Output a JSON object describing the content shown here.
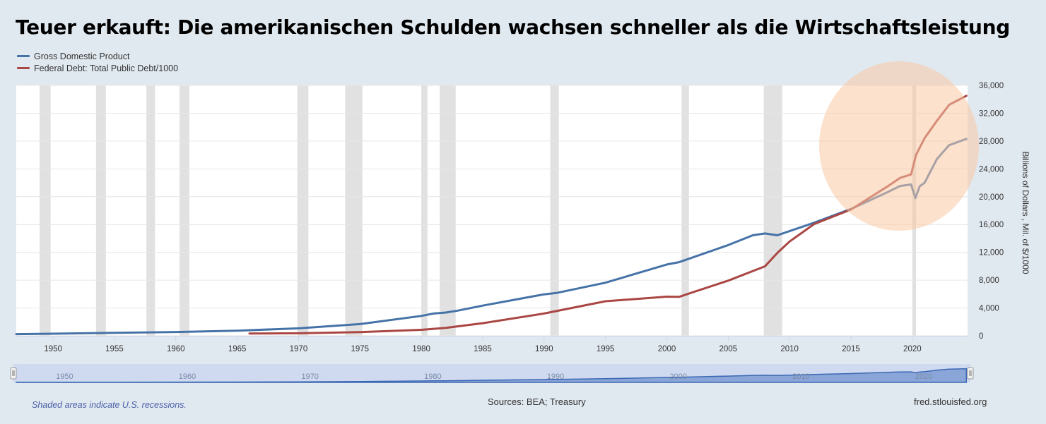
{
  "title": "Teuer erkauft: Die amerikanischen Schulden wachsen schneller als die Wirtschaftsleistung",
  "footer": {
    "recession_note": "Shaded areas indicate U.S. recessions.",
    "sources": "Sources: BEA; Treasury",
    "site": "fred.stlouisfed.org"
  },
  "colors": {
    "gdp": "#4572a7",
    "debt": "#aa4643",
    "recession": "#e1e1e1",
    "highlight": "#f9c9a4"
  },
  "chart_data": {
    "type": "line",
    "xlim": [
      1947,
      2024.5
    ],
    "ylim": [
      0,
      36000
    ],
    "ylabel": "Billions of Dollars , Mil. of $/1000",
    "x_ticks": [
      1950,
      1955,
      1960,
      1965,
      1970,
      1975,
      1980,
      1985,
      1990,
      1995,
      2000,
      2005,
      2010,
      2015,
      2020
    ],
    "y_ticks": [
      0,
      4000,
      8000,
      12000,
      16000,
      20000,
      24000,
      28000,
      32000,
      36000
    ],
    "y_tick_labels": [
      "0",
      "4,000",
      "8,000",
      "12,000",
      "16,000",
      "20,000",
      "24,000",
      "28,000",
      "32,000",
      "36,000"
    ],
    "navigator_labels": [
      "1950",
      "1960",
      "1970",
      "1980",
      "1990",
      "2000",
      "2010",
      "2020"
    ],
    "grid": true,
    "legend_position": "top-left",
    "recessions": [
      [
        1948.9,
        1949.8
      ],
      [
        1953.5,
        1954.3
      ],
      [
        1957.6,
        1958.3
      ],
      [
        1960.3,
        1961.1
      ],
      [
        1969.9,
        1970.8
      ],
      [
        1973.8,
        1975.2
      ],
      [
        1980.0,
        1980.5
      ],
      [
        1981.5,
        1982.8
      ],
      [
        1990.5,
        1991.2
      ],
      [
        2001.2,
        2001.8
      ],
      [
        2007.9,
        2009.4
      ],
      [
        2020.0,
        2020.3
      ]
    ],
    "series": [
      {
        "name": "Gross Domestic Product",
        "x": [
          1947,
          1950,
          1955,
          1960,
          1965,
          1970,
          1975,
          1980,
          1981,
          1982,
          1983,
          1985,
          1990,
          1991,
          1995,
          2000,
          2001,
          2005,
          2007,
          2008,
          2009,
          2010,
          2012,
          2015,
          2018,
          2019,
          2019.9,
          2020.25,
          2020.6,
          2021,
          2022,
          2023,
          2024.4
        ],
        "y": [
          243,
          300,
          426,
          543,
          743,
          1073,
          1685,
          2857,
          3207,
          3345,
          3634,
          4339,
          5963,
          6158,
          7640,
          10251,
          10582,
          13039,
          14452,
          14713,
          14449,
          15049,
          16254,
          18238,
          20656,
          21540,
          21750,
          19800,
          21500,
          22000,
          25400,
          27400,
          28300
        ]
      },
      {
        "name": "Federal Debt: Total Public Debt/1000",
        "x": [
          1966,
          1970,
          1975,
          1980,
          1982,
          1985,
          1990,
          1995,
          2000,
          2001,
          2002,
          2005,
          2008,
          2009,
          2010,
          2012,
          2015,
          2018,
          2019,
          2019.9,
          2020.3,
          2021,
          2022,
          2023,
          2024.4
        ],
        "y": [
          320,
          370,
          541,
          863,
          1142,
          1817,
          3206,
          4974,
          5629,
          5600,
          6200,
          7933,
          9986,
          11910,
          13562,
          16066,
          18150,
          21500,
          22700,
          23200,
          26000,
          28400,
          30900,
          33200,
          34500
        ]
      }
    ]
  }
}
